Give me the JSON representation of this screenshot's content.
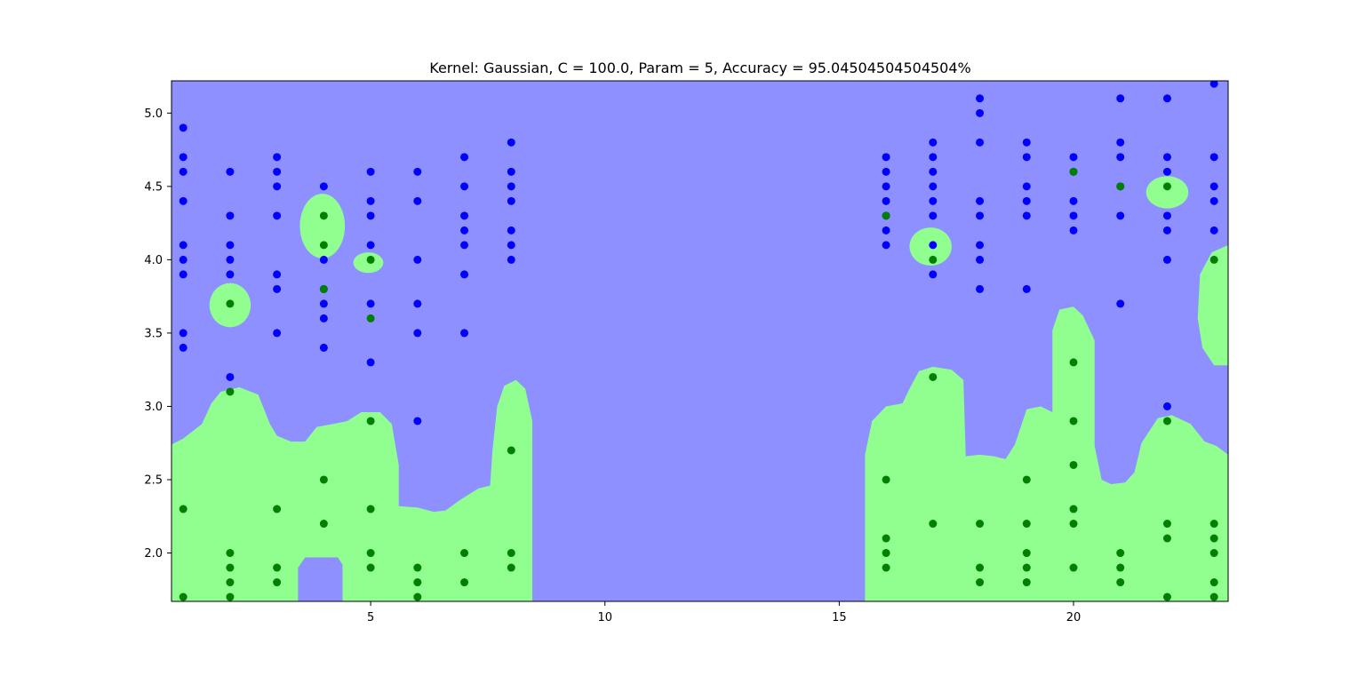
{
  "chart_data": {
    "type": "scatter",
    "title": "Kernel: Gaussian, C = 100.0, Param = 5, Accuracy = 95.04504504504504%",
    "xlabel": "",
    "ylabel": "",
    "xlim": [
      0.75,
      23.3
    ],
    "ylim": [
      1.67,
      5.22
    ],
    "xticks": [
      5,
      10,
      15,
      20
    ],
    "yticks": [
      2.0,
      2.5,
      3.0,
      3.5,
      4.0,
      4.5,
      5.0
    ],
    "xtick_labels": [
      "5",
      "10",
      "15",
      "20"
    ],
    "ytick_labels": [
      "2.0",
      "2.5",
      "3.0",
      "3.5",
      "4.0",
      "4.5",
      "5.0"
    ],
    "grid": false,
    "legend": "none",
    "colors": {
      "background_region": "#8f90ff",
      "decision_region": "#90ff90",
      "class_blue": "#0000ff",
      "class_green": "#008000",
      "axes_frame": "#000000"
    },
    "series": [
      {
        "color": "#0000ff",
        "points": [
          [
            1,
            4.9
          ],
          [
            1,
            4.7
          ],
          [
            1,
            4.6
          ],
          [
            1,
            4.4
          ],
          [
            1,
            4.1
          ],
          [
            1,
            4.0
          ],
          [
            1,
            3.9
          ],
          [
            1,
            3.5
          ],
          [
            1,
            3.4
          ],
          [
            2,
            4.6
          ],
          [
            2,
            4.3
          ],
          [
            2,
            4.1
          ],
          [
            2,
            4.0
          ],
          [
            2,
            3.9
          ],
          [
            2,
            3.2
          ],
          [
            3,
            4.7
          ],
          [
            3,
            4.6
          ],
          [
            3,
            4.5
          ],
          [
            3,
            4.3
          ],
          [
            3,
            3.9
          ],
          [
            3,
            3.8
          ],
          [
            3,
            3.5
          ],
          [
            4,
            4.5
          ],
          [
            4,
            4.0
          ],
          [
            4,
            3.8
          ],
          [
            4,
            3.7
          ],
          [
            4,
            3.6
          ],
          [
            4,
            3.4
          ],
          [
            5,
            4.6
          ],
          [
            5,
            4.4
          ],
          [
            5,
            4.3
          ],
          [
            5,
            4.1
          ],
          [
            5,
            3.7
          ],
          [
            5,
            3.3
          ],
          [
            6,
            4.6
          ],
          [
            6,
            4.4
          ],
          [
            6,
            4.0
          ],
          [
            6,
            3.7
          ],
          [
            6,
            3.5
          ],
          [
            6,
            2.9
          ],
          [
            7,
            4.7
          ],
          [
            7,
            4.5
          ],
          [
            7,
            4.3
          ],
          [
            7,
            4.2
          ],
          [
            7,
            4.1
          ],
          [
            7,
            3.9
          ],
          [
            7,
            3.5
          ],
          [
            8,
            4.8
          ],
          [
            8,
            4.6
          ],
          [
            8,
            4.5
          ],
          [
            8,
            4.4
          ],
          [
            8,
            4.2
          ],
          [
            8,
            4.1
          ],
          [
            8,
            4.0
          ],
          [
            16,
            4.7
          ],
          [
            16,
            4.6
          ],
          [
            16,
            4.5
          ],
          [
            16,
            4.4
          ],
          [
            16,
            4.3
          ],
          [
            16,
            4.2
          ],
          [
            16,
            4.1
          ],
          [
            17,
            4.8
          ],
          [
            17,
            4.7
          ],
          [
            17,
            4.6
          ],
          [
            17,
            4.5
          ],
          [
            17,
            4.4
          ],
          [
            17,
            4.3
          ],
          [
            17,
            4.1
          ],
          [
            17,
            3.9
          ],
          [
            18,
            5.1
          ],
          [
            18,
            5.0
          ],
          [
            18,
            4.8
          ],
          [
            18,
            4.4
          ],
          [
            18,
            4.3
          ],
          [
            18,
            4.1
          ],
          [
            18,
            4.0
          ],
          [
            18,
            3.8
          ],
          [
            19,
            4.8
          ],
          [
            19,
            4.7
          ],
          [
            19,
            4.5
          ],
          [
            19,
            4.4
          ],
          [
            19,
            4.3
          ],
          [
            19,
            3.8
          ],
          [
            20,
            4.7
          ],
          [
            20,
            4.6
          ],
          [
            20,
            4.4
          ],
          [
            20,
            4.3
          ],
          [
            20,
            4.2
          ],
          [
            21,
            5.1
          ],
          [
            21,
            4.8
          ],
          [
            21,
            4.7
          ],
          [
            21,
            4.5
          ],
          [
            21,
            4.3
          ],
          [
            21,
            3.7
          ],
          [
            22,
            5.1
          ],
          [
            22,
            4.7
          ],
          [
            22,
            4.6
          ],
          [
            22,
            4.3
          ],
          [
            22,
            4.2
          ],
          [
            22,
            4.0
          ],
          [
            22,
            3.0
          ],
          [
            23,
            5.2
          ],
          [
            23,
            4.7
          ],
          [
            23,
            4.5
          ],
          [
            23,
            4.4
          ],
          [
            23,
            4.2
          ]
        ]
      },
      {
        "color": "#008000",
        "points": [
          [
            1,
            2.3
          ],
          [
            1,
            1.7
          ],
          [
            2,
            3.7
          ],
          [
            2,
            3.1
          ],
          [
            2,
            2.0
          ],
          [
            2,
            1.9
          ],
          [
            2,
            1.8
          ],
          [
            2,
            1.7
          ],
          [
            3,
            2.3
          ],
          [
            3,
            1.9
          ],
          [
            3,
            1.8
          ],
          [
            4,
            4.3
          ],
          [
            4,
            4.1
          ],
          [
            4,
            3.8
          ],
          [
            4,
            2.5
          ],
          [
            4,
            2.2
          ],
          [
            5,
            4.0
          ],
          [
            5,
            3.6
          ],
          [
            5,
            2.9
          ],
          [
            5,
            2.3
          ],
          [
            5,
            2.0
          ],
          [
            5,
            1.9
          ],
          [
            6,
            1.9
          ],
          [
            6,
            1.8
          ],
          [
            6,
            1.7
          ],
          [
            7,
            2.0
          ],
          [
            7,
            1.8
          ],
          [
            8,
            2.7
          ],
          [
            8,
            2.0
          ],
          [
            8,
            1.9
          ],
          [
            16,
            4.3
          ],
          [
            16,
            2.5
          ],
          [
            16,
            2.1
          ],
          [
            16,
            2.0
          ],
          [
            16,
            1.9
          ],
          [
            17,
            4.0
          ],
          [
            17,
            3.2
          ],
          [
            17,
            2.2
          ],
          [
            18,
            2.2
          ],
          [
            18,
            1.9
          ],
          [
            18,
            1.8
          ],
          [
            19,
            2.5
          ],
          [
            19,
            2.2
          ],
          [
            19,
            2.0
          ],
          [
            19,
            1.9
          ],
          [
            19,
            1.8
          ],
          [
            20,
            4.6
          ],
          [
            20,
            3.3
          ],
          [
            20,
            2.9
          ],
          [
            20,
            2.6
          ],
          [
            20,
            2.3
          ],
          [
            20,
            2.2
          ],
          [
            20,
            1.9
          ],
          [
            21,
            4.5
          ],
          [
            21,
            2.0
          ],
          [
            21,
            1.9
          ],
          [
            21,
            1.8
          ],
          [
            22,
            4.5
          ],
          [
            22,
            2.9
          ],
          [
            22,
            2.2
          ],
          [
            22,
            2.1
          ],
          [
            22,
            1.7
          ],
          [
            23,
            4.0
          ],
          [
            23,
            2.2
          ],
          [
            23,
            2.1
          ],
          [
            23,
            2.0
          ],
          [
            23,
            1.8
          ],
          [
            23,
            1.7
          ]
        ]
      }
    ],
    "decision_regions": [
      {
        "shape": "polygon",
        "points": [
          [
            0.75,
            1.67
          ],
          [
            0.75,
            2.74
          ],
          [
            1.0,
            2.78
          ],
          [
            1.4,
            2.88
          ],
          [
            1.6,
            3.02
          ],
          [
            1.8,
            3.1
          ],
          [
            2.2,
            3.13
          ],
          [
            2.6,
            3.08
          ],
          [
            2.85,
            2.88
          ],
          [
            3.0,
            2.8
          ],
          [
            3.3,
            2.76
          ],
          [
            3.6,
            2.76
          ],
          [
            3.85,
            2.86
          ],
          [
            4.2,
            2.88
          ],
          [
            4.5,
            2.9
          ],
          [
            4.8,
            2.96
          ],
          [
            5.2,
            2.96
          ],
          [
            5.45,
            2.88
          ],
          [
            5.6,
            2.6
          ],
          [
            5.6,
            2.32
          ],
          [
            6.0,
            2.31
          ],
          [
            6.35,
            2.28
          ],
          [
            6.6,
            2.29
          ],
          [
            6.9,
            2.36
          ],
          [
            7.3,
            2.44
          ],
          [
            7.55,
            2.46
          ],
          [
            7.6,
            2.7
          ],
          [
            7.7,
            3.0
          ],
          [
            7.85,
            3.14
          ],
          [
            8.1,
            3.18
          ],
          [
            8.3,
            3.12
          ],
          [
            8.45,
            2.9
          ],
          [
            8.45,
            1.67
          ]
        ]
      },
      {
        "shape": "polygon",
        "points": [
          [
            15.55,
            1.67
          ],
          [
            15.55,
            2.67
          ],
          [
            15.7,
            2.9
          ],
          [
            16.0,
            3.0
          ],
          [
            16.35,
            3.02
          ],
          [
            16.5,
            3.12
          ],
          [
            16.7,
            3.24
          ],
          [
            17.0,
            3.27
          ],
          [
            17.4,
            3.25
          ],
          [
            17.65,
            3.18
          ],
          [
            17.7,
            2.66
          ],
          [
            18.0,
            2.67
          ],
          [
            18.3,
            2.66
          ],
          [
            18.55,
            2.64
          ],
          [
            18.75,
            2.74
          ],
          [
            19.0,
            2.98
          ],
          [
            19.3,
            3.0
          ],
          [
            19.55,
            2.96
          ],
          [
            19.55,
            3.52
          ],
          [
            19.7,
            3.66
          ],
          [
            20.0,
            3.68
          ],
          [
            20.2,
            3.62
          ],
          [
            20.45,
            3.45
          ],
          [
            20.45,
            2.73
          ],
          [
            20.6,
            2.5
          ],
          [
            20.8,
            2.47
          ],
          [
            21.1,
            2.48
          ],
          [
            21.3,
            2.55
          ],
          [
            21.45,
            2.75
          ],
          [
            21.8,
            2.92
          ],
          [
            22.1,
            2.94
          ],
          [
            22.5,
            2.88
          ],
          [
            22.8,
            2.76
          ],
          [
            23.05,
            2.73
          ],
          [
            23.3,
            2.67
          ],
          [
            23.3,
            1.67
          ]
        ]
      },
      {
        "shape": "polygon",
        "points": [
          [
            3.45,
            1.67
          ],
          [
            3.45,
            1.9
          ],
          [
            3.6,
            1.97
          ],
          [
            4.3,
            1.97
          ],
          [
            4.4,
            1.92
          ],
          [
            4.4,
            1.67
          ]
        ],
        "fill": "background_region"
      },
      {
        "shape": "polygon",
        "points": [
          [
            23.3,
            4.1
          ],
          [
            22.95,
            4.05
          ],
          [
            22.7,
            3.9
          ],
          [
            22.65,
            3.6
          ],
          [
            22.75,
            3.4
          ],
          [
            23.0,
            3.28
          ],
          [
            23.3,
            3.28
          ]
        ]
      },
      {
        "shape": "ellipse",
        "cx": 2.0,
        "cy": 3.69,
        "rx": 0.44,
        "ry": 0.15
      },
      {
        "shape": "ellipse",
        "cx": 3.97,
        "cy": 4.23,
        "rx": 0.48,
        "ry": 0.22
      },
      {
        "shape": "ellipse",
        "cx": 4.95,
        "cy": 3.98,
        "rx": 0.32,
        "ry": 0.07
      },
      {
        "shape": "ellipse",
        "cx": 16.95,
        "cy": 4.09,
        "rx": 0.45,
        "ry": 0.13
      },
      {
        "shape": "ellipse",
        "cx": 22.0,
        "cy": 4.46,
        "rx": 0.45,
        "ry": 0.11
      }
    ]
  }
}
